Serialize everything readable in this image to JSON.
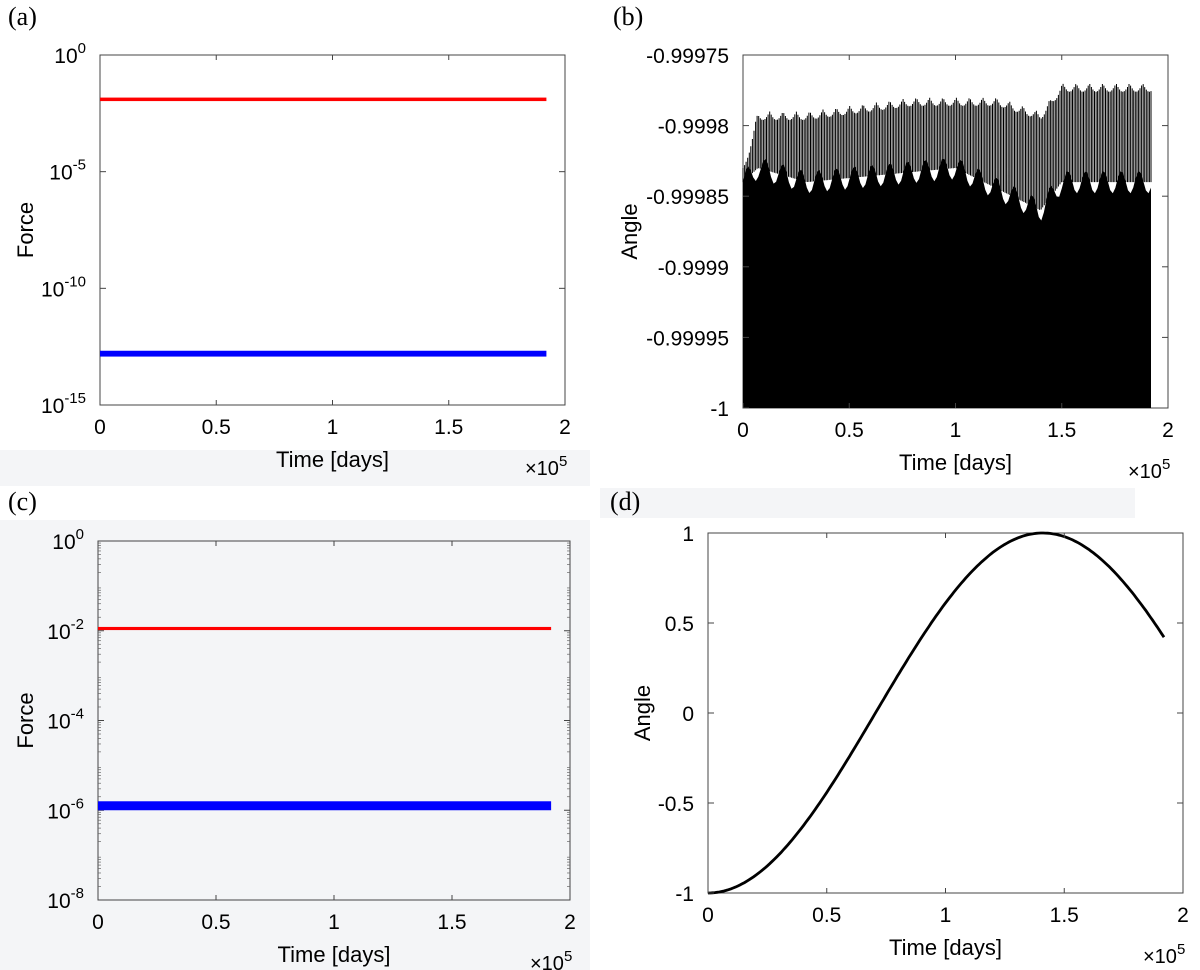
{
  "figure": {
    "panels": [
      {
        "letter": "(a)"
      },
      {
        "letter": "(b)"
      },
      {
        "letter": "(c)"
      },
      {
        "letter": "(d)"
      }
    ]
  },
  "chart_data": [
    {
      "type": "line",
      "panel": "(a)",
      "title": "",
      "xlabel": "Time [days]",
      "ylabel": "Force",
      "x_multiplier": "×10^5",
      "xlim": [
        0,
        2
      ],
      "ylim_log10": [
        -15,
        0
      ],
      "y_scale": "log",
      "x_ticks": [
        "0",
        "0.5",
        "1",
        "1.5",
        "2"
      ],
      "y_ticks": [
        {
          "base": "10",
          "exp": "0",
          "log": 0
        },
        {
          "base": "10",
          "exp": "-5",
          "log": -5
        },
        {
          "base": "10",
          "exp": "-10",
          "log": -10
        },
        {
          "base": "10",
          "exp": "-15",
          "log": -15
        }
      ],
      "series": [
        {
          "color": "#ff0000",
          "x": [
            0,
            1.92
          ],
          "y_log10": [
            -1.9,
            -1.9
          ],
          "band_log10": 0.15
        },
        {
          "color": "#0000ff",
          "x": [
            0,
            1.92
          ],
          "y_log10": [
            -12.8,
            -12.8
          ],
          "band_log10": 0.25
        }
      ]
    },
    {
      "type": "line",
      "panel": "(b)",
      "title": "",
      "xlabel": "Time [days]",
      "ylabel": "Angle",
      "x_multiplier": "×10^5",
      "xlim": [
        0,
        2
      ],
      "ylim": [
        -1,
        -0.99975
      ],
      "x_ticks": [
        "0",
        "0.5",
        "1",
        "1.5",
        "2"
      ],
      "y_ticks": [
        {
          "label": "-0.99975",
          "v": -0.99975
        },
        {
          "label": "-0.9998",
          "v": -0.9998
        },
        {
          "label": "-0.99985",
          "v": -0.99985
        },
        {
          "label": "-0.9999",
          "v": -0.9999
        },
        {
          "label": "-0.99995",
          "v": -0.99995
        },
        {
          "label": "-1",
          "v": -1
        }
      ],
      "series": [
        {
          "color": "#000000",
          "description_range": "dense oscillation",
          "x_end": 1.92,
          "band_low": -1.0,
          "solid_top": [
            [
              0,
              -0.99984
            ],
            [
              0.07,
              -0.99983
            ],
            [
              0.3,
              -0.99984
            ],
            [
              1.0,
              -0.99983
            ],
            [
              1.4,
              -0.99986
            ],
            [
              1.5,
              -0.99984
            ],
            [
              1.92,
              -0.99984
            ]
          ],
          "envelope_top": [
            [
              0,
              -0.99983
            ],
            [
              0.07,
              -0.99979
            ],
            [
              0.3,
              -0.99979
            ],
            [
              0.8,
              -0.99978
            ],
            [
              1.2,
              -0.99978
            ],
            [
              1.4,
              -0.99979
            ],
            [
              1.5,
              -0.99977
            ],
            [
              1.92,
              -0.99977
            ]
          ]
        }
      ]
    },
    {
      "type": "line",
      "panel": "(c)",
      "title": "",
      "xlabel": "Time [days]",
      "ylabel": "Force",
      "x_multiplier": "×10^5",
      "xlim": [
        0,
        2
      ],
      "ylim_log10": [
        -8,
        0
      ],
      "y_scale": "log",
      "x_ticks": [
        "0",
        "0.5",
        "1",
        "1.5",
        "2"
      ],
      "y_ticks": [
        {
          "base": "10",
          "exp": "0",
          "log": 0
        },
        {
          "base": "10",
          "exp": "-2",
          "log": -2
        },
        {
          "base": "10",
          "exp": "-4",
          "log": -4
        },
        {
          "base": "10",
          "exp": "-6",
          "log": -6
        },
        {
          "base": "10",
          "exp": "-8",
          "log": -8
        }
      ],
      "series": [
        {
          "color": "#ff0000",
          "x": [
            0,
            1.92
          ],
          "y_log10": [
            -1.95,
            -1.95
          ],
          "band_log10": 0.07
        },
        {
          "color": "#0000ff",
          "x": [
            0,
            1.92
          ],
          "y_log10": [
            -5.9,
            -5.9
          ],
          "band_log10": 0.2
        }
      ]
    },
    {
      "type": "line",
      "panel": "(d)",
      "title": "",
      "xlabel": "Time [days]",
      "ylabel": "Angle",
      "x_multiplier": "×10^5",
      "xlim": [
        0,
        2
      ],
      "ylim": [
        -1,
        1
      ],
      "x_ticks": [
        "0",
        "0.5",
        "1",
        "1.5",
        "2"
      ],
      "y_ticks": [
        {
          "label": "1",
          "v": 1
        },
        {
          "label": "0.5",
          "v": 0.5
        },
        {
          "label": "0",
          "v": 0
        },
        {
          "label": "-0.5",
          "v": -0.5
        },
        {
          "label": "-1",
          "v": -1
        }
      ],
      "series": [
        {
          "color": "#000000",
          "x": [
            0,
            1.92
          ],
          "formula": "-cos(pi*x/1.41)"
        }
      ]
    }
  ]
}
